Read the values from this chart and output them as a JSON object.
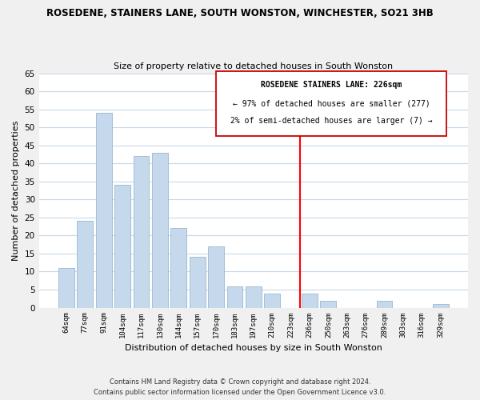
{
  "title": "ROSEDENE, STAINERS LANE, SOUTH WONSTON, WINCHESTER, SO21 3HB",
  "subtitle": "Size of property relative to detached houses in South Wonston",
  "xlabel": "Distribution of detached houses by size in South Wonston",
  "ylabel": "Number of detached properties",
  "bar_labels": [
    "64sqm",
    "77sqm",
    "91sqm",
    "104sqm",
    "117sqm",
    "130sqm",
    "144sqm",
    "157sqm",
    "170sqm",
    "183sqm",
    "197sqm",
    "210sqm",
    "223sqm",
    "236sqm",
    "250sqm",
    "263sqm",
    "276sqm",
    "289sqm",
    "303sqm",
    "316sqm",
    "329sqm"
  ],
  "bar_values": [
    11,
    24,
    54,
    34,
    42,
    43,
    22,
    14,
    17,
    6,
    6,
    4,
    0,
    4,
    2,
    0,
    0,
    2,
    0,
    0,
    1
  ],
  "bar_color": "#c6d9ec",
  "bar_edge_color": "#9ab8d0",
  "vline_color": "red",
  "annotation_title": "ROSEDENE STAINERS LANE: 226sqm",
  "annotation_line1": "← 97% of detached houses are smaller (277)",
  "annotation_line2": "2% of semi-detached houses are larger (7) →",
  "ylim": [
    0,
    65
  ],
  "yticks": [
    0,
    5,
    10,
    15,
    20,
    25,
    30,
    35,
    40,
    45,
    50,
    55,
    60,
    65
  ],
  "footer_line1": "Contains HM Land Registry data © Crown copyright and database right 2024.",
  "footer_line2": "Contains public sector information licensed under the Open Government Licence v3.0.",
  "bg_color": "#f0f0f0",
  "plot_bg_color": "#ffffff"
}
